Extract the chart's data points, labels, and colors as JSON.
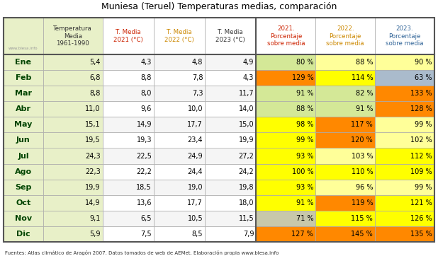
{
  "title": "Muniesa (Teruel) Temperaturas medias, comparación",
  "footer": "Fuentes: Atlas climático de Aragón 2007. Datos tomados de web de AEMet. Elaboración propia www.blesa.info",
  "watermark": "www.blesa.info",
  "months": [
    "Ene",
    "Feb",
    "Mar",
    "Abr",
    "May",
    "Jun",
    "Jul",
    "Ago",
    "Sep",
    "Oct",
    "Nov",
    "Dic"
  ],
  "col_headers": [
    "Temperatura\nMedia\n1961-1990",
    "T. Media\n2021 (°C)",
    "T. Media\n2022 (°C)",
    "T. Media\n2023 (°C)",
    "2021.\nPorcentaje\nsobre media",
    "2022.\nPorcentaje\nsobre media",
    "2023.\nPorcentaje\nsobre media"
  ],
  "col_header_colors": [
    "#333333",
    "#cc2200",
    "#cc8800",
    "#333333",
    "#cc2200",
    "#cc8800",
    "#336699"
  ],
  "temp_1961": [
    5.4,
    6.8,
    8.8,
    11.0,
    15.1,
    19.5,
    24.3,
    22.3,
    19.9,
    14.9,
    9.1,
    5.9
  ],
  "temp_2021": [
    4.3,
    8.8,
    8.0,
    9.6,
    14.9,
    19.3,
    22.5,
    22.2,
    18.5,
    13.6,
    6.5,
    7.5
  ],
  "temp_2022": [
    4.8,
    7.8,
    7.3,
    10.0,
    17.7,
    23.4,
    24.9,
    24.4,
    19.0,
    17.7,
    10.5,
    8.5
  ],
  "temp_2023": [
    4.9,
    4.3,
    11.7,
    14.0,
    15.0,
    19.9,
    27.2,
    24.2,
    19.8,
    18.0,
    11.5,
    7.9
  ],
  "pct_2021": [
    80,
    129,
    91,
    88,
    98,
    99,
    93,
    100,
    93,
    91,
    71,
    127
  ],
  "pct_2022": [
    88,
    114,
    82,
    91,
    117,
    120,
    103,
    110,
    96,
    119,
    115,
    145
  ],
  "pct_2023": [
    90,
    63,
    133,
    128,
    99,
    102,
    112,
    109,
    99,
    121,
    126,
    135
  ],
  "pct_2021_colors": [
    "#d4e897",
    "#ff8800",
    "#d4e897",
    "#d4e897",
    "#ffff00",
    "#ffff00",
    "#ffff00",
    "#ffff00",
    "#ffff00",
    "#ffff00",
    "#c8c8aa",
    "#ff8800"
  ],
  "pct_2022_colors": [
    "#ffff99",
    "#ffff00",
    "#d4e897",
    "#d4e897",
    "#ff8800",
    "#ff8800",
    "#ffff99",
    "#ffff00",
    "#ffff99",
    "#ff8800",
    "#ffff00",
    "#ff8800"
  ],
  "pct_2023_colors": [
    "#ffff99",
    "#aabbcc",
    "#ff8800",
    "#ff8800",
    "#ffff99",
    "#ffff99",
    "#ffff00",
    "#ffff00",
    "#ffff99",
    "#ffff00",
    "#ffff00",
    "#ff8800"
  ],
  "left_col_bg": "#e8f0c8",
  "white_bg": "#ffffff",
  "border_color": "#555555",
  "thin_border": "#aaaaaa"
}
